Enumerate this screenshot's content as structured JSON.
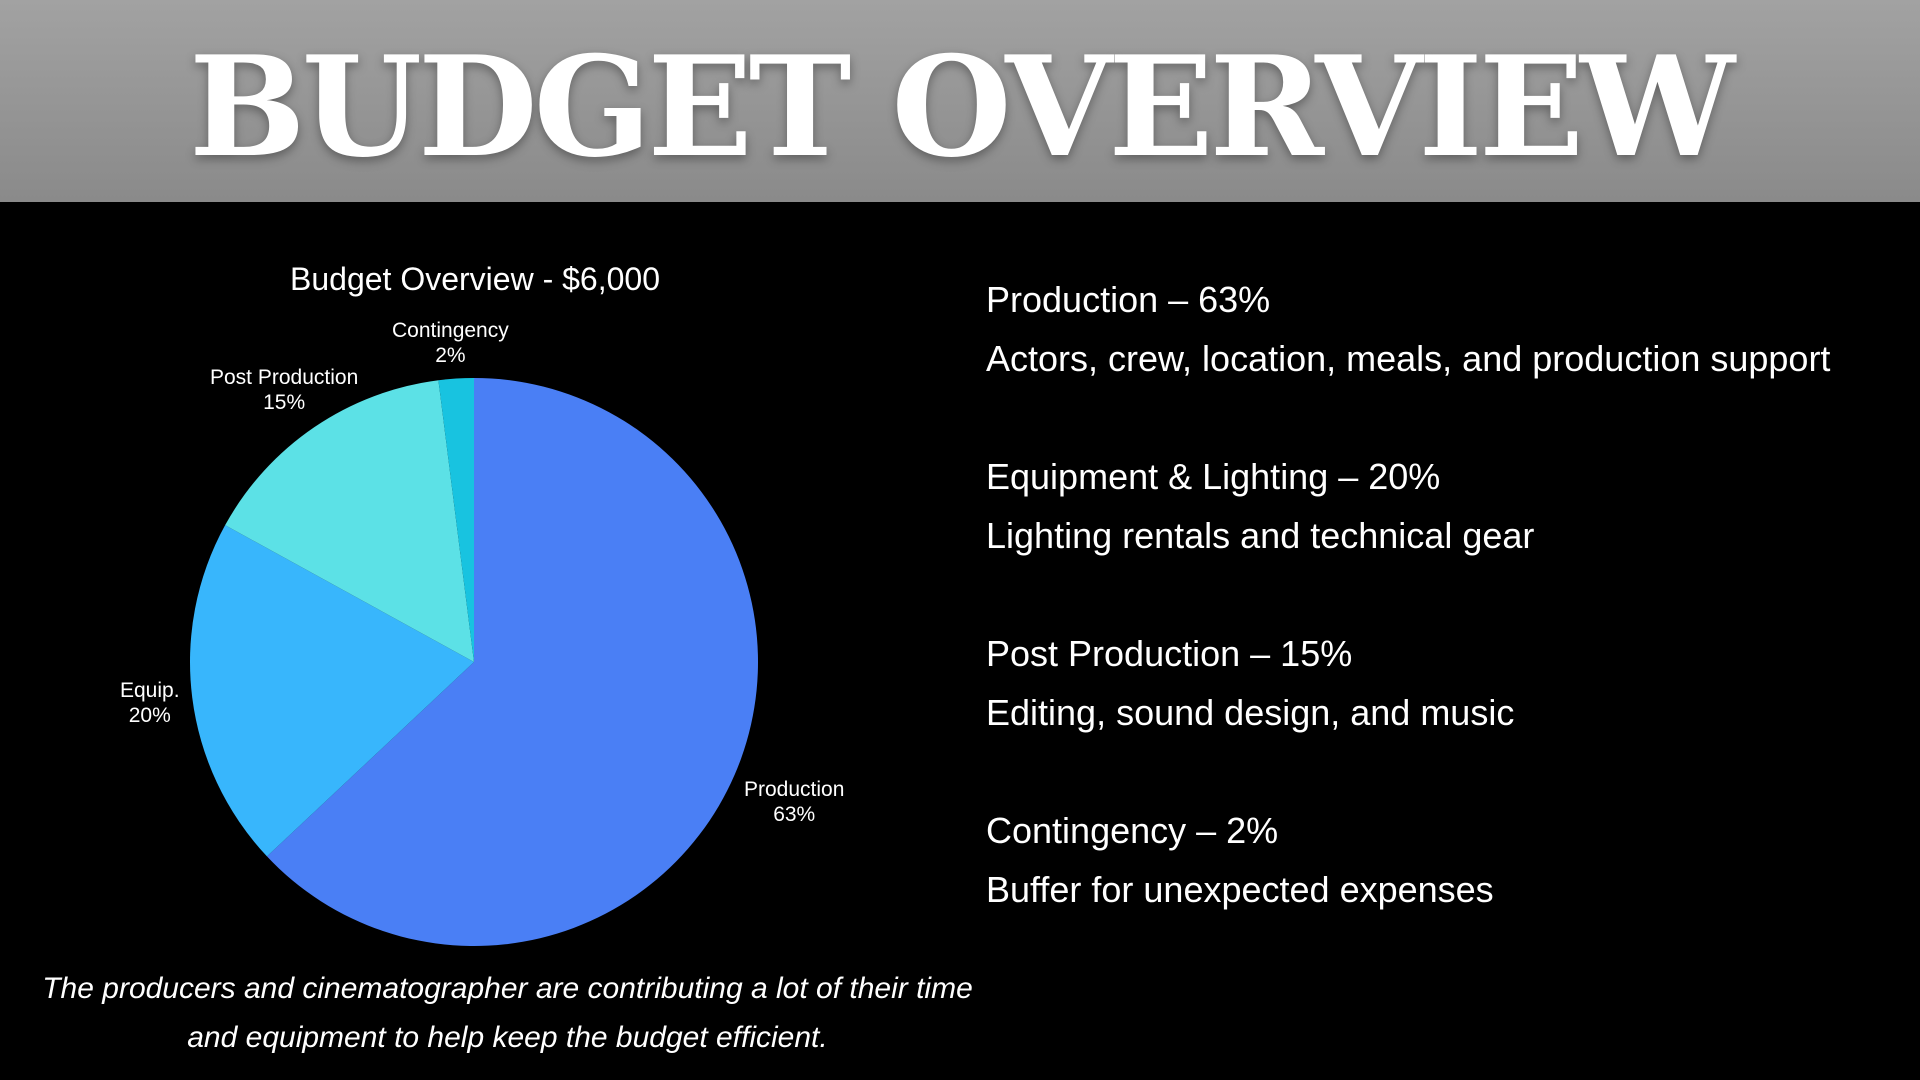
{
  "header": {
    "title": "BUDGET OVERVIEW"
  },
  "chart_data": {
    "type": "pie",
    "title": "Budget Overview - $6,000",
    "categories": [
      "Production",
      "Equip.",
      "Post Production",
      "Contingency"
    ],
    "values": [
      63,
      20,
      15,
      2
    ],
    "value_labels": [
      "63%",
      "20%",
      "15%",
      "2%"
    ],
    "colors": [
      "#4a7ff5",
      "#38b6fc",
      "#5ce1e6",
      "#18c3e0"
    ],
    "start_angle_deg": 0,
    "direction": "clockwise",
    "caption": "The producers and cinematographer are contributing a lot of their time and equipment to help keep the budget efficient."
  },
  "breakdown": {
    "items": [
      {
        "heading": "Production – 63%",
        "description": "Actors, crew, location, meals, and production support"
      },
      {
        "heading": "Equipment & Lighting – 20%",
        "description": "Lighting rentals and technical gear"
      },
      {
        "heading": "Post Production – 15%",
        "description": "Editing, sound design, and music"
      },
      {
        "heading": "Contingency – 2%",
        "description": "Buffer for unexpected expenses"
      }
    ]
  }
}
